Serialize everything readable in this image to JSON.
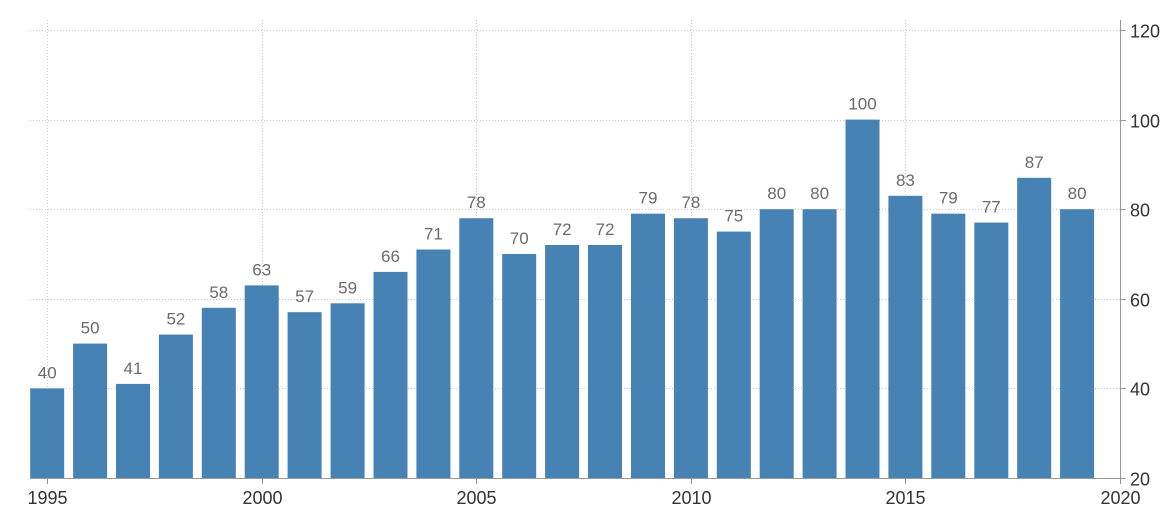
{
  "colors": {
    "bar": "#4682b4"
  },
  "chart_data": {
    "type": "bar",
    "title": "",
    "xlabel": "",
    "ylabel": "",
    "categories": [
      1995,
      1996,
      1997,
      1998,
      1999,
      2000,
      2001,
      2002,
      2003,
      2004,
      2005,
      2006,
      2007,
      2008,
      2009,
      2010,
      2011,
      2012,
      2013,
      2014,
      2015,
      2016,
      2017,
      2018,
      2019
    ],
    "values": [
      40,
      50,
      41,
      52,
      58,
      63,
      57,
      59,
      66,
      71,
      78,
      70,
      72,
      72,
      79,
      78,
      75,
      80,
      80,
      100,
      83,
      79,
      77,
      87,
      80
    ],
    "ylim": [
      20,
      120
    ],
    "y_ticks": [
      20,
      40,
      60,
      80,
      100,
      120
    ],
    "y_axis_side": "right",
    "x_ticks": [
      1995,
      2000,
      2005,
      2010,
      2015,
      2020
    ],
    "xlim": [
      1994.6,
      2020
    ],
    "grid": true,
    "data_labels": true,
    "legend": "none"
  }
}
